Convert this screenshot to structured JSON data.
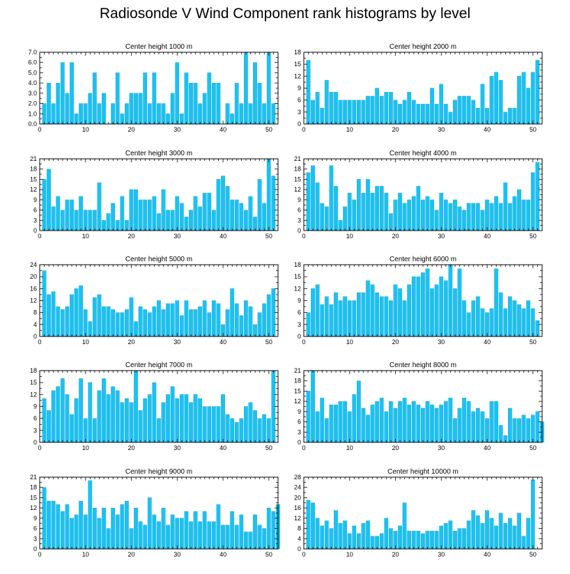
{
  "title": "Radiosonde V Wind Component rank histograms by level",
  "colors": {
    "bar": "#18c3f4",
    "bar_edge": "#0a86b8",
    "axis": "#000000"
  },
  "chart_data": [
    {
      "type": "bar",
      "title": "Center height 1000 m",
      "x_ticks": [
        0,
        10,
        20,
        30,
        40,
        50
      ],
      "ylim": [
        0,
        7
      ],
      "y_ticks": [
        "0.0",
        "1.0",
        "2.0",
        "3.0",
        "4.0",
        "5.0",
        "6.0",
        "7.0"
      ],
      "values": [
        2,
        4,
        2,
        4,
        6,
        3,
        6,
        1,
        2,
        2,
        3,
        5,
        2,
        3,
        0,
        2,
        5,
        1,
        2,
        3,
        3,
        3,
        5,
        2,
        5,
        2,
        2,
        1,
        3,
        6,
        1,
        5,
        4,
        4,
        2,
        3,
        5,
        4,
        4,
        0,
        2,
        1,
        4,
        2,
        7,
        2,
        6,
        4,
        2,
        7,
        2
      ]
    },
    {
      "type": "bar",
      "title": "Center height 2000 m",
      "x_ticks": [
        0,
        10,
        20,
        30,
        40,
        50
      ],
      "ylim": [
        0,
        18
      ],
      "y_ticks": [
        "0",
        "3",
        "6",
        "9",
        "12",
        "15",
        "18"
      ],
      "values": [
        16,
        6,
        8,
        4,
        11,
        8,
        8,
        6,
        6,
        6,
        6,
        6,
        6,
        7,
        7,
        9,
        7,
        8,
        8,
        6,
        5,
        6,
        8,
        6,
        5,
        5,
        5,
        9,
        5,
        10,
        5,
        3,
        6,
        7,
        7,
        7,
        6,
        4,
        10,
        4,
        12,
        13,
        11,
        3,
        4,
        4,
        12,
        13,
        9,
        13,
        16
      ]
    },
    {
      "type": "bar",
      "title": "Center height 3000 m",
      "x_ticks": [
        0,
        10,
        20,
        30,
        40,
        50
      ],
      "ylim": [
        0,
        21
      ],
      "y_ticks": [
        "0",
        "3",
        "6",
        "9",
        "12",
        "15",
        "18",
        "21"
      ],
      "values": [
        15,
        18,
        7,
        10,
        6,
        9,
        9,
        6,
        10,
        6,
        6,
        6,
        14,
        3,
        5,
        8,
        3,
        10,
        3,
        12,
        12,
        9,
        9,
        9,
        10,
        5,
        12,
        6,
        6,
        10,
        8,
        4,
        6,
        10,
        7,
        11,
        11,
        6,
        15,
        16,
        13,
        9,
        9,
        8,
        6,
        10,
        4,
        15,
        8,
        21,
        16
      ]
    },
    {
      "type": "bar",
      "title": "Center height 4000 m",
      "x_ticks": [
        0,
        10,
        20,
        30,
        40,
        50
      ],
      "ylim": [
        0,
        21
      ],
      "y_ticks": [
        "0",
        "3",
        "6",
        "9",
        "12",
        "15",
        "18",
        "21"
      ],
      "values": [
        17,
        19,
        14,
        8,
        7,
        19,
        13,
        3,
        7,
        11,
        9,
        15,
        11,
        15,
        11,
        13,
        13,
        11,
        5,
        9,
        11,
        8,
        9,
        10,
        13,
        9,
        10,
        9,
        6,
        11,
        9,
        8,
        9,
        7,
        6,
        8,
        8,
        8,
        6,
        9,
        8,
        10,
        8,
        14,
        8,
        10,
        12,
        9,
        9,
        17,
        20
      ]
    },
    {
      "type": "bar",
      "title": "Center height 5000 m",
      "x_ticks": [
        0,
        10,
        20,
        30,
        40,
        50
      ],
      "ylim": [
        0,
        24
      ],
      "y_ticks": [
        "0",
        "4",
        "8",
        "12",
        "16",
        "20",
        "24"
      ],
      "values": [
        22,
        14,
        15,
        10,
        9,
        10,
        14,
        16,
        17,
        9,
        5,
        13,
        14,
        10,
        10,
        9,
        8,
        8,
        9,
        13,
        5,
        10,
        9,
        8,
        10,
        12,
        9,
        11,
        11,
        12,
        7,
        12,
        9,
        9,
        10,
        12,
        8,
        12,
        11,
        4,
        9,
        16,
        11,
        7,
        12,
        10,
        4,
        8,
        11,
        14,
        16
      ]
    },
    {
      "type": "bar",
      "title": "Center height 6000 m",
      "x_ticks": [
        0,
        10,
        20,
        30,
        40,
        50
      ],
      "ylim": [
        0,
        18
      ],
      "y_ticks": [
        "0",
        "3",
        "6",
        "9",
        "12",
        "15",
        "18"
      ],
      "values": [
        6,
        12,
        13,
        8,
        10,
        8,
        11,
        9,
        10,
        9,
        9,
        11,
        11,
        14,
        13,
        11,
        10,
        10,
        9,
        13,
        12,
        9,
        13,
        15,
        15,
        16,
        17,
        12,
        13,
        15,
        14,
        18,
        12,
        17,
        9,
        6,
        9,
        10,
        7,
        6,
        7,
        17,
        11,
        7,
        10,
        9,
        8,
        7,
        9,
        7,
        4
      ]
    },
    {
      "type": "bar",
      "title": "Center height 7000 m",
      "x_ticks": [
        0,
        10,
        20,
        30,
        40,
        50
      ],
      "ylim": [
        0,
        18
      ],
      "y_ticks": [
        "0",
        "3",
        "6",
        "9",
        "12",
        "15",
        "18"
      ],
      "values": [
        11,
        8,
        13,
        14,
        16,
        12,
        7,
        11,
        16,
        6,
        15,
        6,
        13,
        16,
        12,
        14,
        13,
        10,
        11,
        10,
        18,
        8,
        11,
        12,
        15,
        6,
        10,
        12,
        14,
        11,
        12,
        12,
        10,
        12,
        11,
        9,
        9,
        9,
        9,
        12,
        7,
        6,
        5,
        6,
        9,
        10,
        8,
        6,
        7,
        6,
        18
      ]
    },
    {
      "type": "bar",
      "title": "Center height 8000 m",
      "x_ticks": [
        0,
        10,
        20,
        30,
        40,
        50
      ],
      "ylim": [
        0,
        21
      ],
      "y_ticks": [
        "0",
        "3",
        "6",
        "9",
        "12",
        "15",
        "18",
        "21"
      ],
      "values": [
        15,
        21,
        9,
        13,
        7,
        11,
        11,
        12,
        12,
        9,
        14,
        18,
        10,
        8,
        11,
        12,
        13,
        9,
        12,
        10,
        12,
        13,
        11,
        12,
        11,
        10,
        12,
        11,
        10,
        11,
        12,
        13,
        7,
        10,
        13,
        12,
        9,
        10,
        9,
        7,
        12,
        12,
        5,
        2,
        10,
        7,
        7,
        8,
        7,
        8,
        9,
        6
      ]
    },
    {
      "type": "bar",
      "title": "Center height 9000 m",
      "x_ticks": [
        0,
        10,
        20,
        30,
        40,
        50
      ],
      "ylim": [
        0,
        21
      ],
      "y_ticks": [
        "0",
        "3",
        "6",
        "9",
        "12",
        "15",
        "18",
        "21"
      ],
      "values": [
        18,
        14,
        14,
        13,
        11,
        13,
        9,
        10,
        14,
        10,
        20,
        12,
        9,
        12,
        6,
        12,
        10,
        13,
        14,
        6,
        12,
        8,
        7,
        15,
        10,
        8,
        12,
        7,
        10,
        9,
        9,
        11,
        8,
        11,
        8,
        11,
        8,
        8,
        13,
        7,
        7,
        11,
        7,
        10,
        5,
        5,
        10,
        7,
        6,
        12,
        11,
        13
      ]
    },
    {
      "type": "bar",
      "title": "Center height 10000 m",
      "x_ticks": [
        0,
        10,
        20,
        30,
        40,
        50
      ],
      "ylim": [
        0,
        28
      ],
      "y_ticks": [
        "0",
        "4",
        "8",
        "12",
        "16",
        "20",
        "24",
        "28"
      ],
      "values": [
        19,
        18,
        12,
        9,
        11,
        8,
        15,
        10,
        11,
        6,
        9,
        6,
        10,
        11,
        5,
        5,
        6,
        12,
        8,
        7,
        9,
        18,
        7,
        7,
        7,
        6,
        7,
        7,
        7,
        9,
        10,
        11,
        7,
        8,
        8,
        11,
        15,
        13,
        10,
        15,
        12,
        9,
        14,
        10,
        12,
        9,
        14,
        5,
        12,
        27
      ]
    }
  ]
}
